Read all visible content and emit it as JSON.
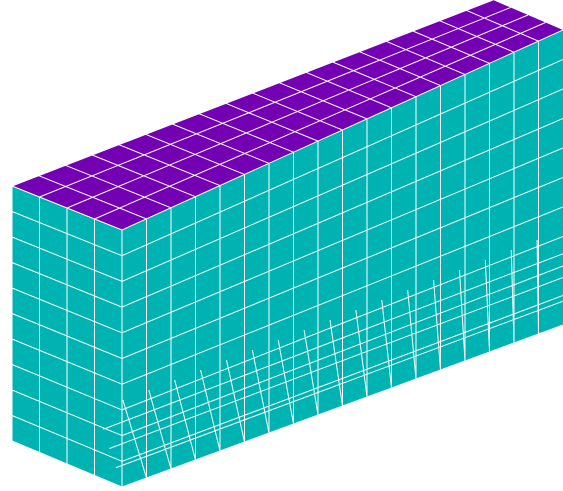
{
  "render": {
    "view": "isometric",
    "shape": "rectangular-box-segment",
    "grid_lines_visible": true
  },
  "colors": {
    "top_face": "#7300b3",
    "side_faces": "#00b3b3",
    "grid_lines": "#ffffff",
    "background": "#ffffff"
  },
  "mesh": {
    "top_face_cells_across": 4,
    "front_face_columns": 18,
    "front_face_rows": 10,
    "end_face_columns": 4,
    "end_face_rows": 10,
    "bottom_face_cells_across": 4
  }
}
